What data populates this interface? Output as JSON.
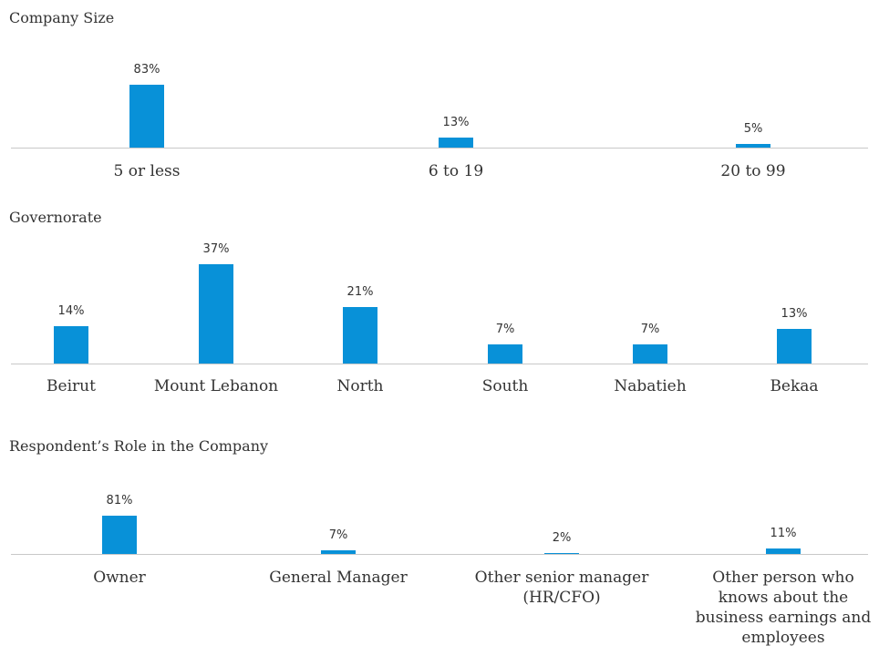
{
  "chart_data": [
    {
      "type": "bar",
      "title": "Company Size",
      "categories": [
        "5 or less",
        "6 to 19",
        "20 to 99"
      ],
      "values": [
        83,
        13,
        5
      ],
      "value_labels": [
        "83%",
        "13%",
        "5%"
      ],
      "color": "#0891d8"
    },
    {
      "type": "bar",
      "title": "Governorate",
      "categories": [
        "Beirut",
        "Mount Lebanon",
        "North",
        "South",
        "Nabatieh",
        "Bekaa"
      ],
      "values": [
        14,
        37,
        21,
        7,
        7,
        13
      ],
      "value_labels": [
        "14%",
        "37%",
        "21%",
        "7%",
        "7%",
        "13%"
      ],
      "color": "#0891d8"
    },
    {
      "type": "bar",
      "title": "Respondent’s Role in the Company",
      "categories": [
        "Owner",
        "General Manager",
        "Other senior manager (HR/CFO)",
        "Other person who knows about the business earnings and employees"
      ],
      "values": [
        81,
        7,
        2,
        11
      ],
      "value_labels": [
        "81%",
        "7%",
        "2%",
        "11%"
      ],
      "color": "#0891d8"
    }
  ]
}
